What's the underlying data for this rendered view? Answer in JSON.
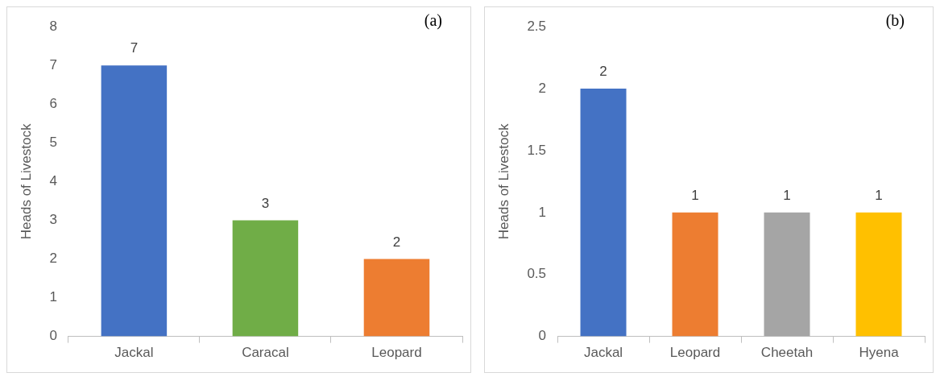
{
  "chart_data": [
    {
      "type": "bar",
      "ylabel": "Heads of Livestock",
      "categories": [
        "Jackal",
        "Caracal",
        "Leopard"
      ],
      "values": [
        7,
        3,
        2
      ],
      "colors": [
        "#4472c4",
        "#70ad47",
        "#ed7d31"
      ],
      "ylim": [
        0,
        8
      ],
      "yticks": [
        0,
        1,
        2,
        3,
        4,
        5,
        6,
        7,
        8
      ],
      "grid": false,
      "data_labels": true,
      "annotations": [
        "(a)"
      ]
    },
    {
      "type": "bar",
      "ylabel": "Heads of Livestock",
      "categories": [
        "Jackal",
        "Leopard",
        "Cheetah",
        "Hyena"
      ],
      "values": [
        2,
        1,
        1,
        1
      ],
      "colors": [
        "#4472c4",
        "#ed7d31",
        "#a5a5a5",
        "#ffc000"
      ],
      "ylim": [
        0,
        2.5
      ],
      "yticks": [
        0,
        0.5,
        1,
        1.5,
        2,
        2.5
      ],
      "grid": false,
      "data_labels": true,
      "annotations": [
        "(b)"
      ]
    }
  ]
}
